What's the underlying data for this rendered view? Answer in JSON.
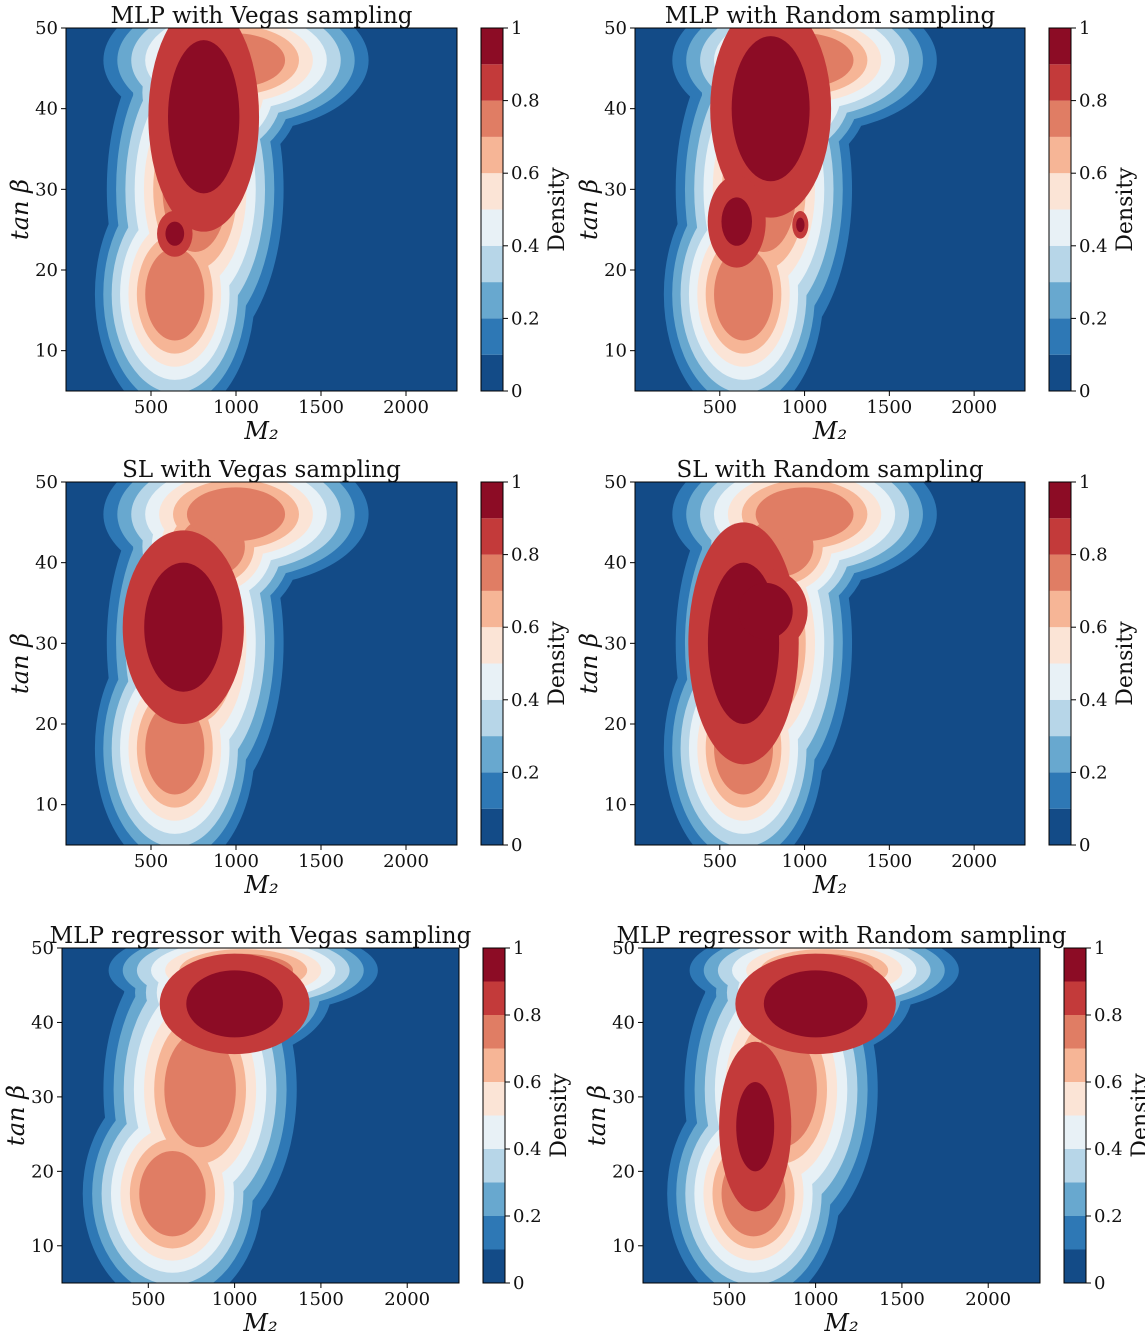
{
  "figure": {
    "colormap": [
      "#134b87",
      "#2e78b5",
      "#68a8cf",
      "#b7d6e8",
      "#e8f1f6",
      "#fbe4d6",
      "#f6b596",
      "#e07d64",
      "#c33a3a",
      "#8c0c25"
    ]
  },
  "chart_data": [
    {
      "type": "heatmap",
      "subtype": "filled-contour",
      "title": "MLP with Vegas sampling",
      "xlabel": "M₂",
      "ylabel": "tan β",
      "colorbar_label": "Density",
      "xlim": [
        0,
        2300
      ],
      "ylim": [
        5,
        50
      ],
      "xticks": [
        500,
        1000,
        1500,
        2000
      ],
      "yticks": [
        10,
        20,
        30,
        40,
        50
      ],
      "colorbar_ticks": [
        0.0,
        0.2,
        0.4,
        0.6,
        0.8,
        1.0
      ],
      "contour_levels": [
        0.0,
        0.1,
        0.2,
        0.3,
        0.4,
        0.5,
        0.6,
        0.7,
        0.8,
        0.9,
        1.0
      ],
      "peaks": [
        {
          "x": 820,
          "y": 40,
          "density": 1.0
        },
        {
          "x": 640,
          "y": 24.5,
          "density": 0.92
        }
      ]
    },
    {
      "type": "heatmap",
      "subtype": "filled-contour",
      "title": "MLP with Random sampling",
      "xlabel": "M₂",
      "ylabel": "tan β",
      "colorbar_label": "Density",
      "xlim": [
        0,
        2300
      ],
      "ylim": [
        5,
        50
      ],
      "xticks": [
        500,
        1000,
        1500,
        2000
      ],
      "yticks": [
        10,
        20,
        30,
        40,
        50
      ],
      "colorbar_ticks": [
        0.0,
        0.2,
        0.4,
        0.6,
        0.8,
        1.0
      ],
      "contour_levels": [
        0.0,
        0.1,
        0.2,
        0.3,
        0.4,
        0.5,
        0.6,
        0.7,
        0.8,
        0.9,
        1.0
      ],
      "peaks": [
        {
          "x": 820,
          "y": 40,
          "density": 1.0
        },
        {
          "x": 600,
          "y": 26,
          "density": 0.95
        }
      ]
    },
    {
      "type": "heatmap",
      "subtype": "filled-contour",
      "title": "SL with Vegas sampling",
      "xlabel": "M₂",
      "ylabel": "tan β",
      "colorbar_label": "Density",
      "xlim": [
        0,
        2300
      ],
      "ylim": [
        5,
        50
      ],
      "xticks": [
        500,
        1000,
        1500,
        2000
      ],
      "yticks": [
        10,
        20,
        30,
        40,
        50
      ],
      "colorbar_ticks": [
        0.0,
        0.2,
        0.4,
        0.6,
        0.8,
        1.0
      ],
      "contour_levels": [
        0.0,
        0.1,
        0.2,
        0.3,
        0.4,
        0.5,
        0.6,
        0.7,
        0.8,
        0.9,
        1.0
      ],
      "peaks": [
        {
          "x": 680,
          "y": 32,
          "density": 1.0
        }
      ]
    },
    {
      "type": "heatmap",
      "subtype": "filled-contour",
      "title": "SL with Random sampling",
      "xlabel": "M₂",
      "ylabel": "tan β",
      "colorbar_label": "Density",
      "xlim": [
        0,
        2300
      ],
      "ylim": [
        5,
        50
      ],
      "xticks": [
        500,
        1000,
        1500,
        2000
      ],
      "yticks": [
        10,
        20,
        30,
        40,
        50
      ],
      "colorbar_ticks": [
        0.0,
        0.2,
        0.4,
        0.6,
        0.8,
        1.0
      ],
      "contour_levels": [
        0.0,
        0.1,
        0.2,
        0.3,
        0.4,
        0.5,
        0.6,
        0.7,
        0.8,
        0.9,
        1.0
      ],
      "peaks": [
        {
          "x": 640,
          "y": 29,
          "density": 1.0
        }
      ]
    },
    {
      "type": "heatmap",
      "subtype": "filled-contour",
      "title": "MLP regressor with Vegas sampling",
      "xlabel": "M₂",
      "ylabel": "tan β",
      "colorbar_label": "Density",
      "xlim": [
        0,
        2300
      ],
      "ylim": [
        5,
        50
      ],
      "xticks": [
        500,
        1000,
        1500,
        2000
      ],
      "yticks": [
        10,
        20,
        30,
        40,
        50
      ],
      "colorbar_ticks": [
        0.0,
        0.2,
        0.4,
        0.6,
        0.8,
        1.0
      ],
      "contour_levels": [
        0.0,
        0.1,
        0.2,
        0.3,
        0.4,
        0.5,
        0.6,
        0.7,
        0.8,
        0.9,
        1.0
      ],
      "peaks": [
        {
          "x": 1000,
          "y": 42.5,
          "density": 1.0
        }
      ]
    },
    {
      "type": "heatmap",
      "subtype": "filled-contour",
      "title": "MLP regressor with Random sampling",
      "xlabel": "M₂",
      "ylabel": "tan β",
      "colorbar_label": "Density",
      "xlim": [
        0,
        2300
      ],
      "ylim": [
        5,
        50
      ],
      "xticks": [
        500,
        1000,
        1500,
        2000
      ],
      "yticks": [
        10,
        20,
        30,
        40,
        50
      ],
      "colorbar_ticks": [
        0.0,
        0.2,
        0.4,
        0.6,
        0.8,
        1.0
      ],
      "contour_levels": [
        0.0,
        0.1,
        0.2,
        0.3,
        0.4,
        0.5,
        0.6,
        0.7,
        0.8,
        0.9,
        1.0
      ],
      "peaks": [
        {
          "x": 1000,
          "y": 42.5,
          "density": 1.0
        },
        {
          "x": 650,
          "y": 26,
          "density": 0.92
        }
      ]
    }
  ]
}
